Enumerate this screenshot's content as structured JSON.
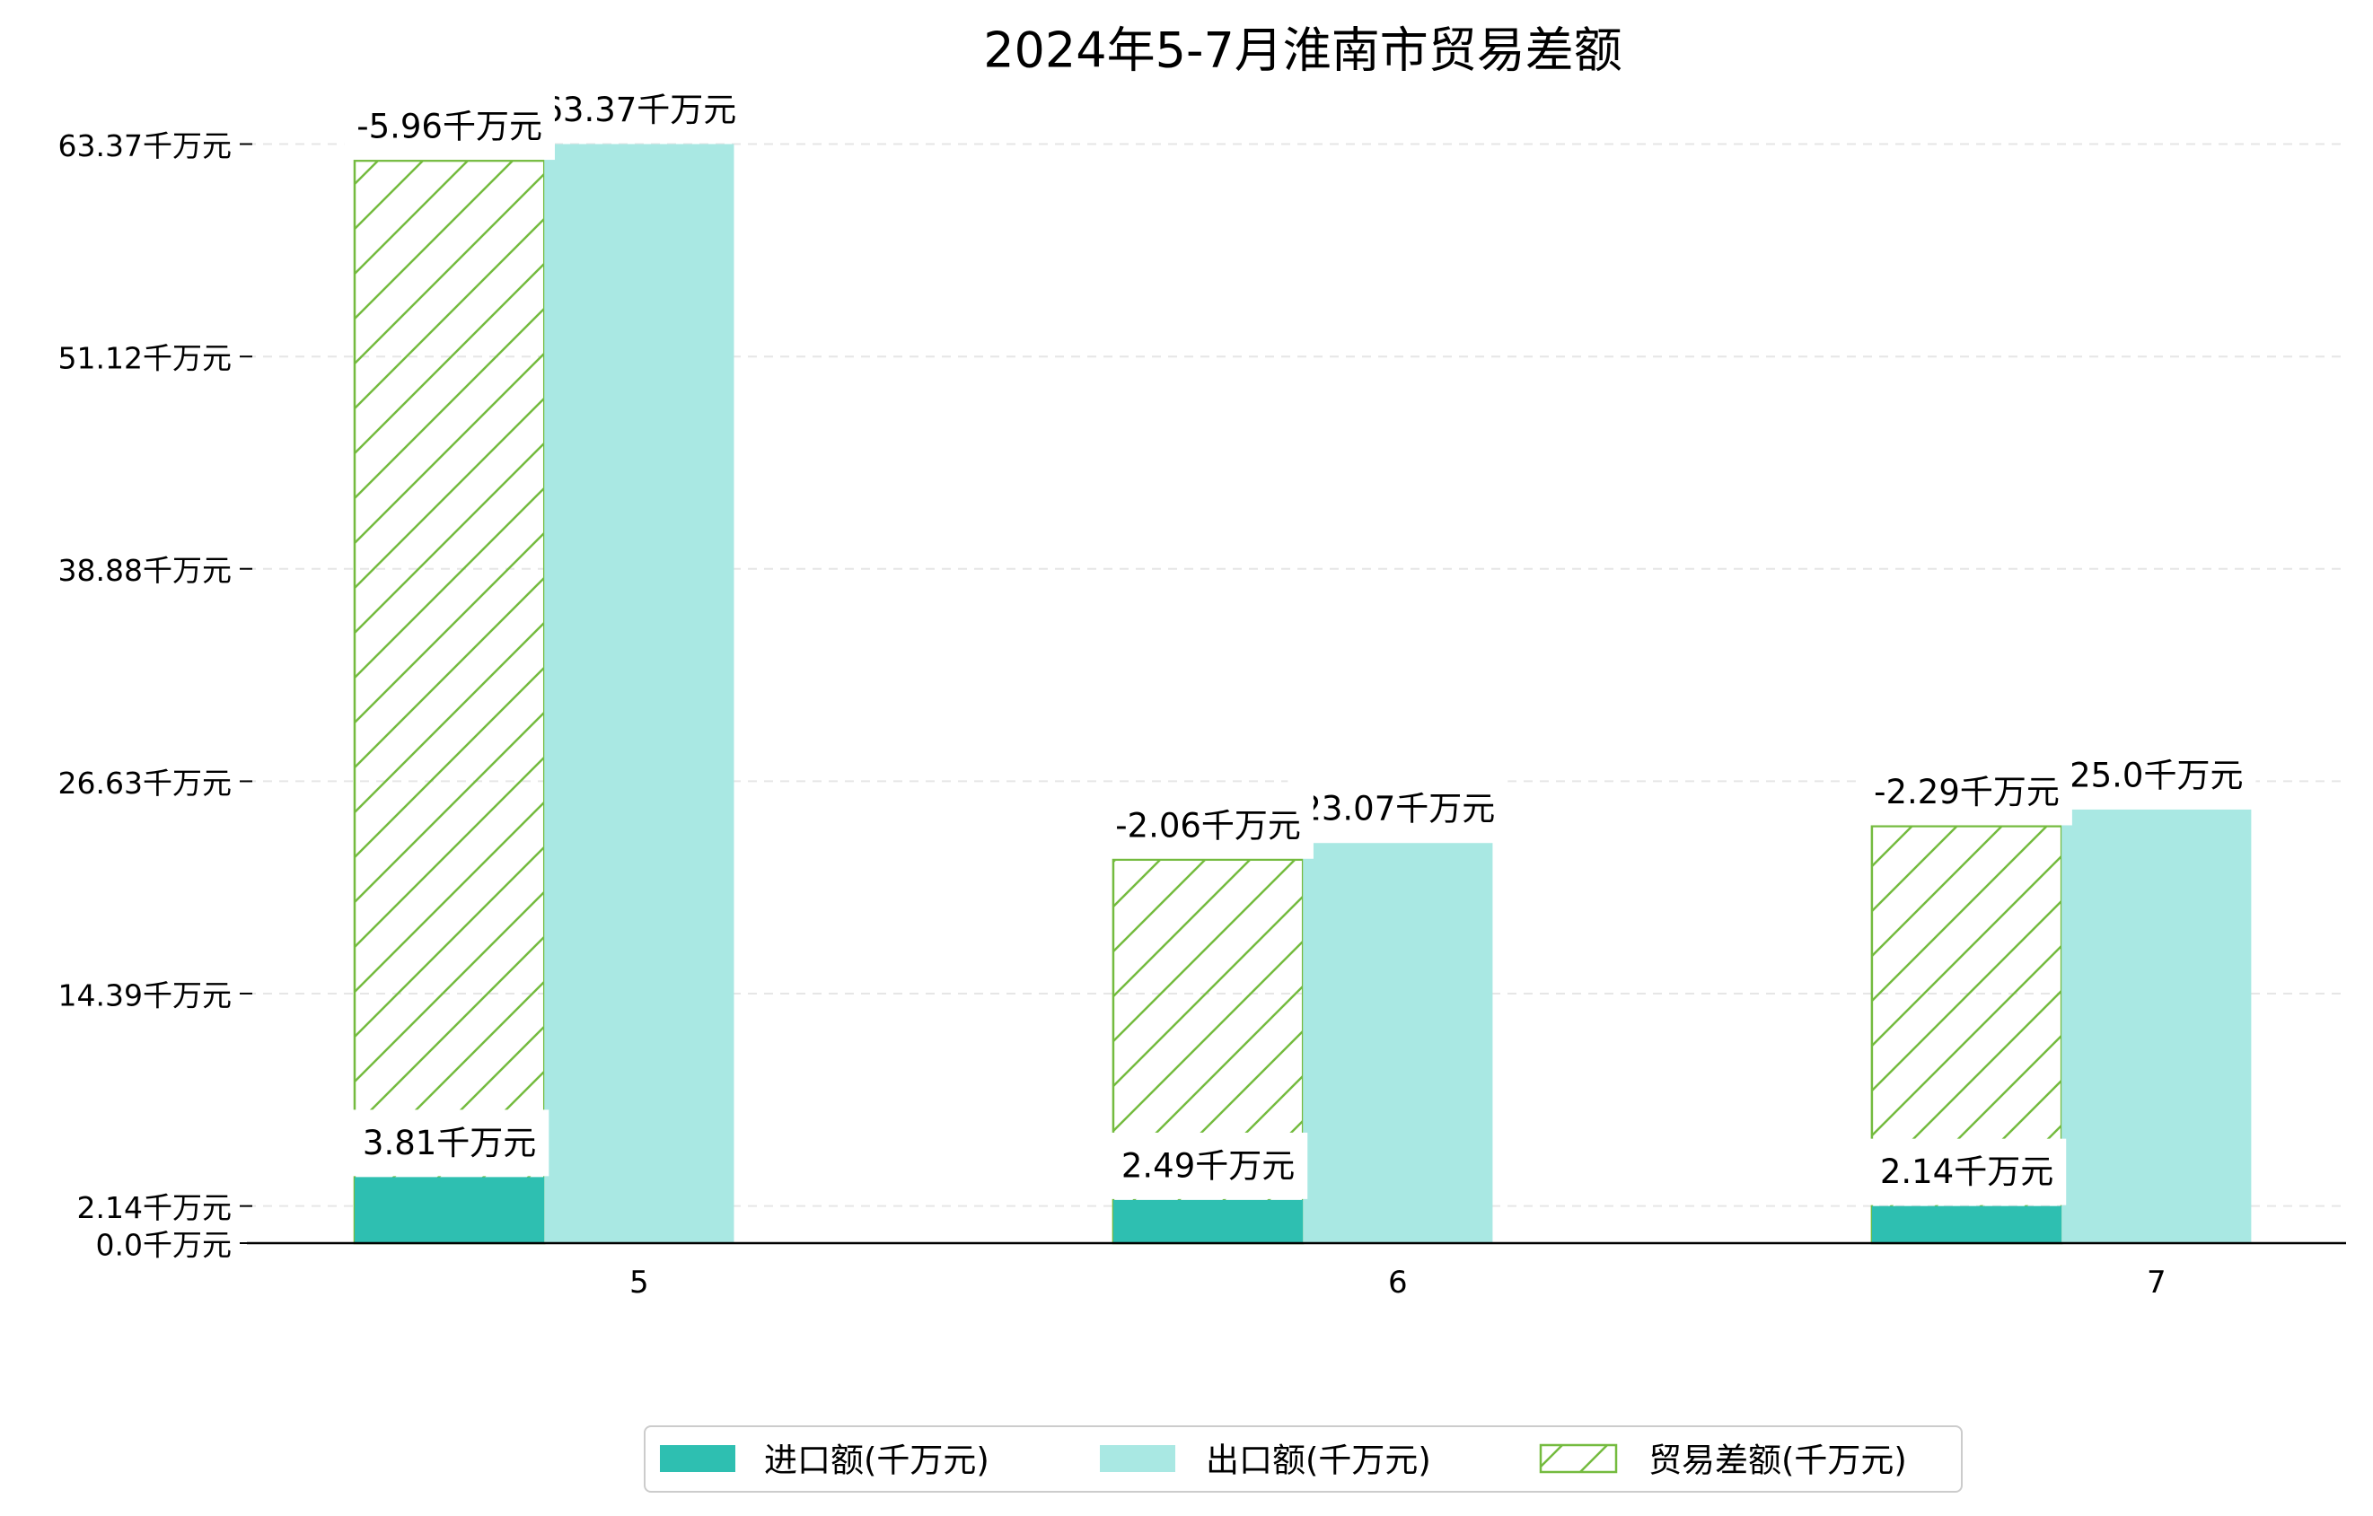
{
  "chart_data": {
    "type": "bar",
    "title": "2024年5-7月淮南市贸易差额",
    "xlabel": "",
    "ylabel": "",
    "categories": [
      "5",
      "6",
      "7"
    ],
    "yticks": [
      0.0,
      2.14,
      14.39,
      26.63,
      38.88,
      51.12,
      63.37
    ],
    "yticklabels": [
      "0.0千万元",
      "2.14千万元",
      "14.39千万元",
      "26.63千万元",
      "38.88千万元",
      "51.12千万元",
      "63.37千万元"
    ],
    "ylim": [
      0,
      63.37
    ],
    "grid": true,
    "legend_position": "bottom-center",
    "series": [
      {
        "name": "进口额(千万元)",
        "values": [
          3.81,
          2.49,
          2.14
        ],
        "labels": [
          "3.81千万元",
          "2.49千万元",
          "2.14千万元"
        ],
        "color": "#2ebfb1",
        "style": "solid"
      },
      {
        "name": "出口额(千万元)",
        "values": [
          63.37,
          23.07,
          25.0
        ],
        "labels": [
          "63.37千万元",
          "23.07千万元",
          "25.0千万元"
        ],
        "color": "#a9e8e3",
        "style": "solid"
      },
      {
        "name": "贸易差额(千万元)",
        "values": [
          -5.96,
          -2.06,
          -2.29
        ],
        "plotted_values": [
          62.41,
          22.11,
          24.04
        ],
        "labels": [
          "-5.96千万元",
          "-2.06千万元",
          "-2.29千万元"
        ],
        "color": "#74bb3f",
        "style": "hatched"
      }
    ]
  }
}
